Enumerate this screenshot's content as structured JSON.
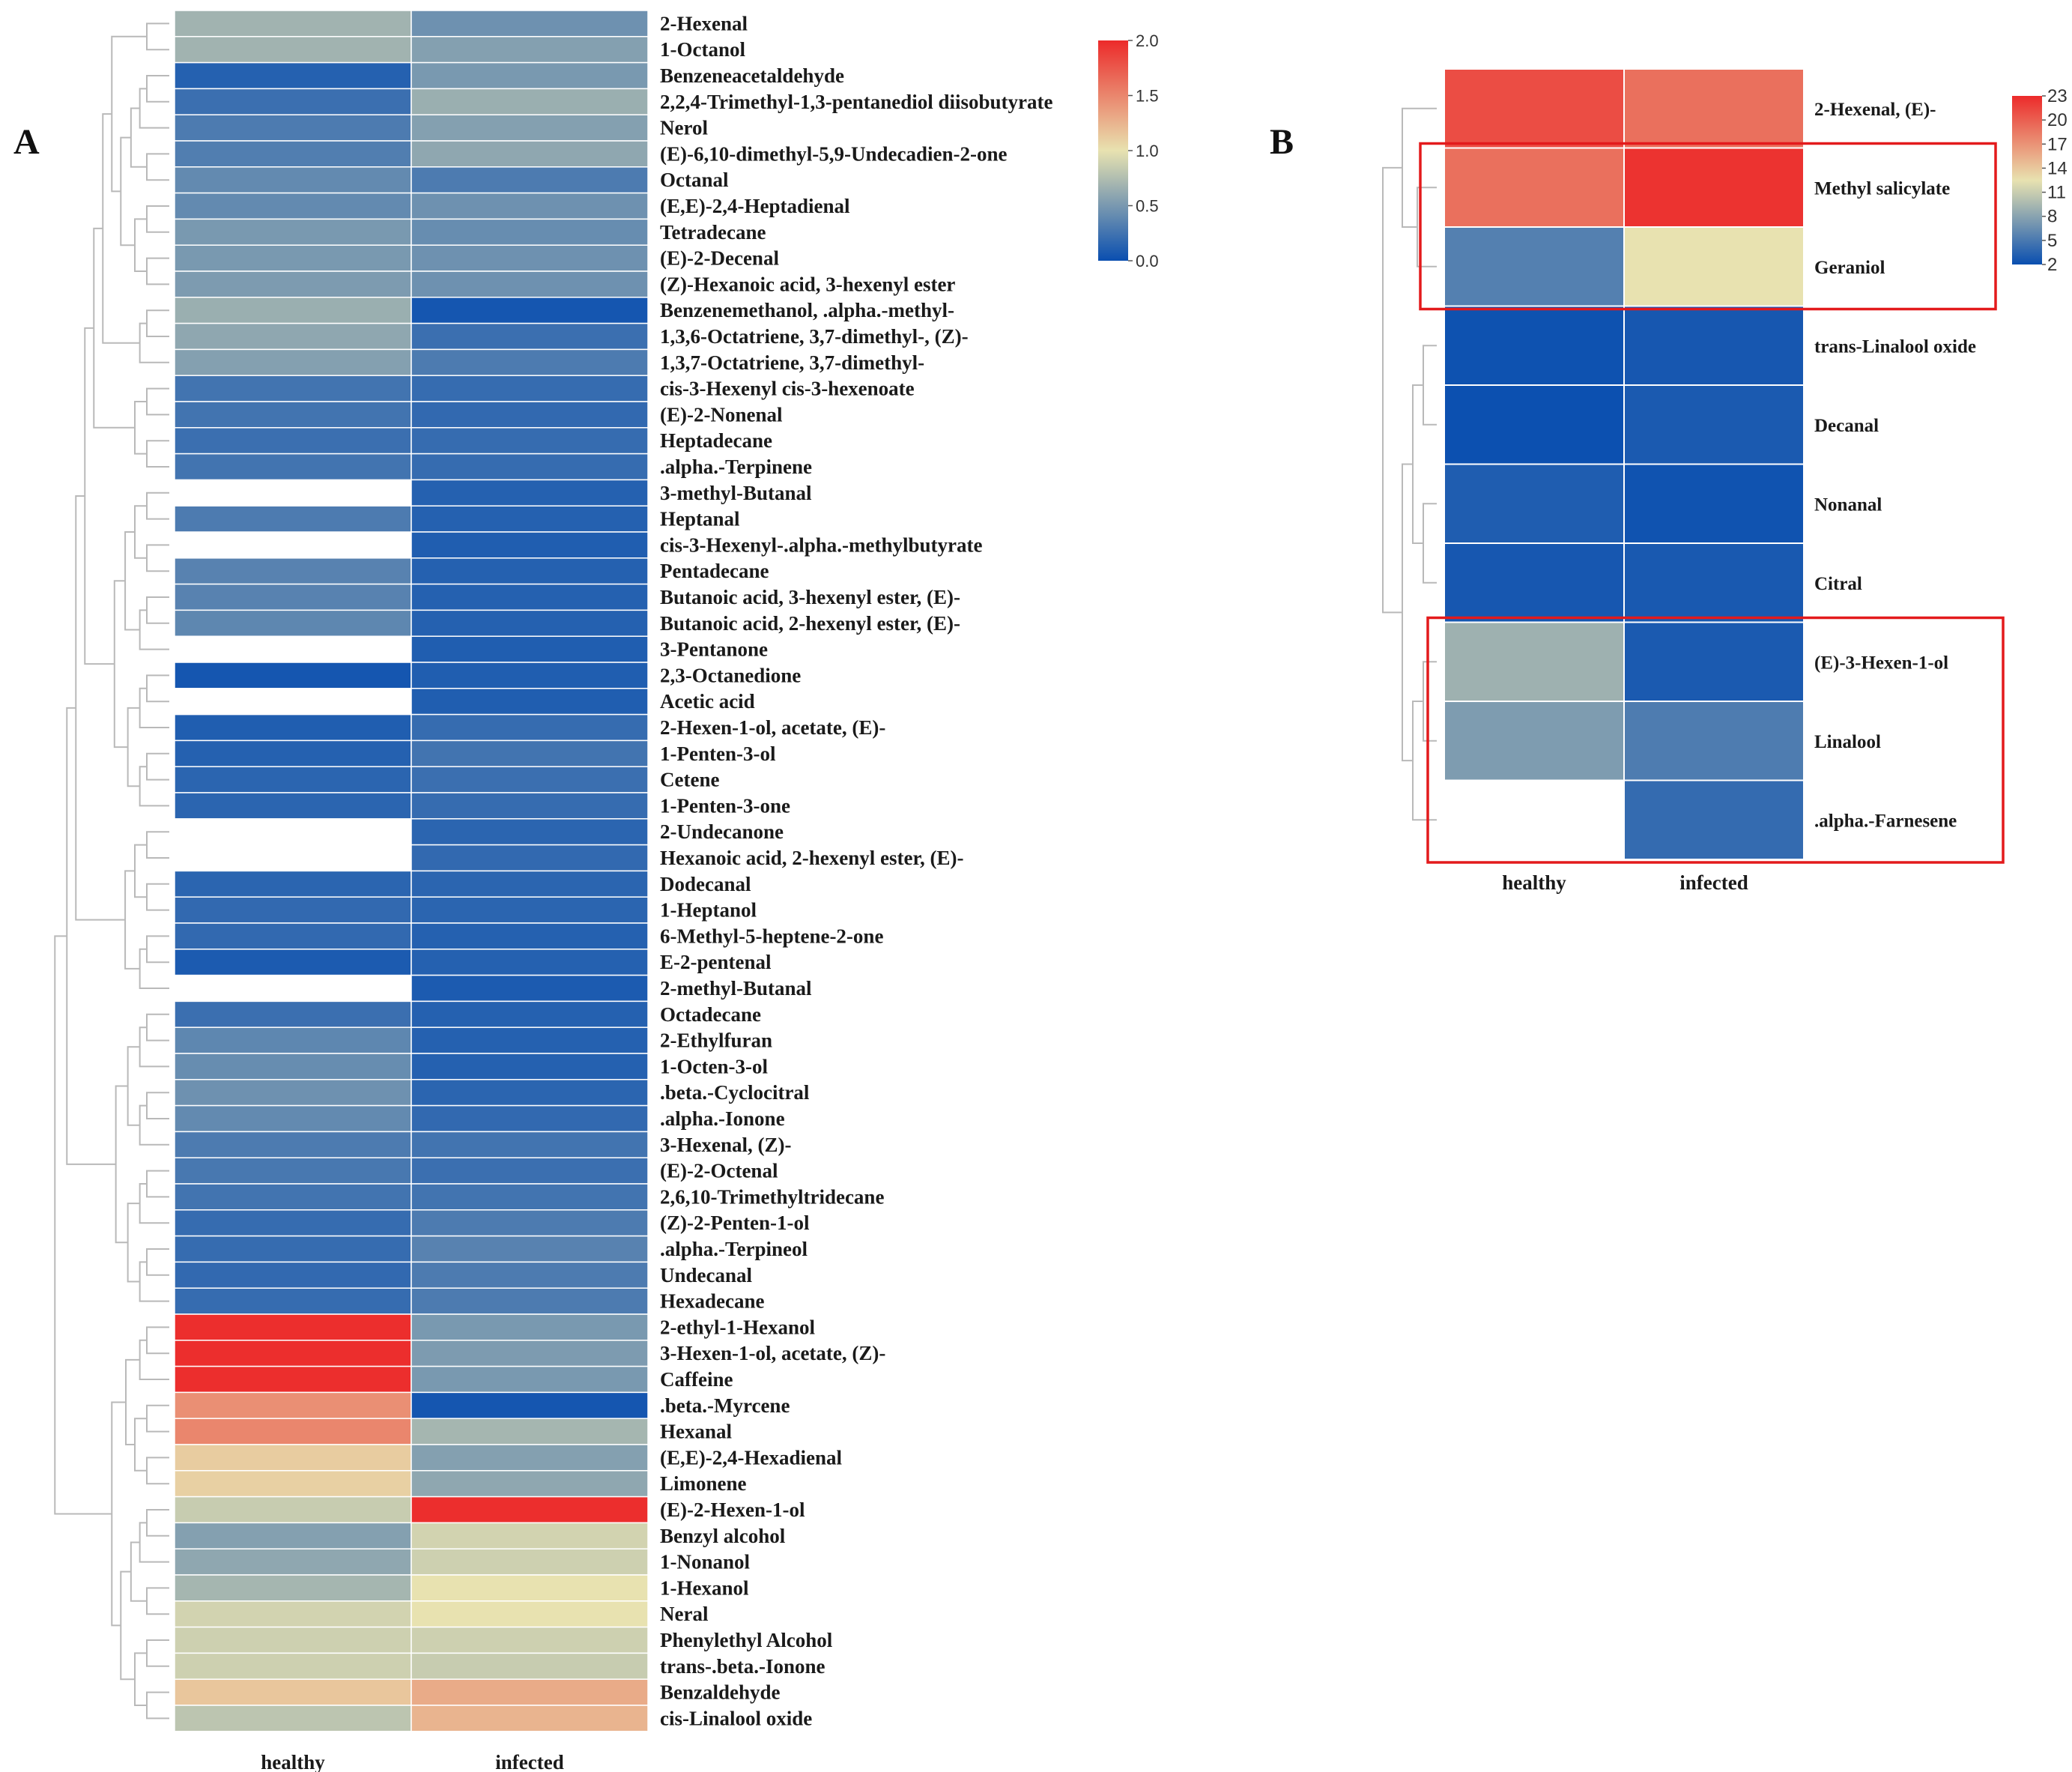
{
  "colors": {
    "low": "#0a4fb0",
    "mid": "#e8e2b0",
    "high": "#ec2a2a",
    "highlight_box": "#e31a1c",
    "dendrogram": "#b9b9b9"
  },
  "chart_data": [
    {
      "panel": "A",
      "type": "heatmap",
      "columns": [
        "healthy",
        "infected"
      ],
      "colorbar": {
        "min": 0.0,
        "max": 2.0,
        "ticks": [
          "2.0",
          "1.5",
          "1.0",
          "0.5",
          "0.0"
        ],
        "tick_values": [
          2.0,
          1.5,
          1.0,
          0.5,
          0.0
        ]
      },
      "rows": [
        {
          "name": "2-Hexenal",
          "values": [
            0.68,
            0.45
          ]
        },
        {
          "name": "1-Octanol",
          "values": [
            0.68,
            0.55
          ]
        },
        {
          "name": "Benzeneacetaldehyde",
          "values": [
            0.12,
            0.5
          ]
        },
        {
          "name": "2,2,4-Trimethyl-1,3-pentanediol diisobutyrate",
          "values": [
            0.22,
            0.65
          ]
        },
        {
          "name": "Nerol",
          "values": [
            0.3,
            0.55
          ]
        },
        {
          "name": "(E)-6,10-dimethyl-5,9-Undecadien-2-one",
          "values": [
            0.32,
            0.6
          ]
        },
        {
          "name": "Octanal",
          "values": [
            0.4,
            0.3
          ]
        },
        {
          "name": "(E,E)-2,4-Heptadienal",
          "values": [
            0.4,
            0.45
          ]
        },
        {
          "name": "Tetradecane",
          "values": [
            0.5,
            0.42
          ]
        },
        {
          "name": "(E)-2-Decenal",
          "values": [
            0.5,
            0.45
          ]
        },
        {
          "name": "(Z)-Hexanoic acid, 3-hexenyl ester",
          "values": [
            0.52,
            0.45
          ]
        },
        {
          "name": "Benzenemethanol, .alpha.-methyl-",
          "values": [
            0.65,
            0.05
          ]
        },
        {
          "name": "1,3,6-Octatriene, 3,7-dimethyl-, (Z)-",
          "values": [
            0.6,
            0.22
          ]
        },
        {
          "name": "1,3,7-Octatriene, 3,7-dimethyl-",
          "values": [
            0.55,
            0.3
          ]
        },
        {
          "name": "cis-3-Hexenyl cis-3-hexenoate",
          "values": [
            0.25,
            0.2
          ]
        },
        {
          "name": "(E)-2-Nonenal",
          "values": [
            0.25,
            0.18
          ]
        },
        {
          "name": "Heptadecane",
          "values": [
            0.22,
            0.2
          ]
        },
        {
          "name": ".alpha.-Terpinene",
          "values": [
            0.25,
            0.2
          ]
        },
        {
          "name": "3-methyl-Butanal",
          "values": [
            null,
            0.12
          ]
        },
        {
          "name": "Heptanal",
          "values": [
            0.3,
            0.12
          ]
        },
        {
          "name": "cis-3-Hexenyl-.alpha.-methylbutyrate",
          "values": [
            null,
            0.1
          ]
        },
        {
          "name": "Pentadecane",
          "values": [
            0.35,
            0.12
          ]
        },
        {
          "name": "Butanoic acid, 3-hexenyl ester, (E)-",
          "values": [
            0.35,
            0.12
          ]
        },
        {
          "name": "Butanoic acid, 2-hexenyl ester, (E)-",
          "values": [
            0.38,
            0.12
          ]
        },
        {
          "name": "3-Pentanone",
          "values": [
            null,
            0.1
          ]
        },
        {
          "name": "2,3-Octanedione",
          "values": [
            0.05,
            0.1
          ]
        },
        {
          "name": "Acetic acid",
          "values": [
            null,
            0.1
          ]
        },
        {
          "name": "2-Hexen-1-ol, acetate, (E)-",
          "values": [
            0.1,
            0.2
          ]
        },
        {
          "name": "1-Penten-3-ol",
          "values": [
            0.12,
            0.25
          ]
        },
        {
          "name": "Cetene",
          "values": [
            0.15,
            0.22
          ]
        },
        {
          "name": "1-Penten-3-one",
          "values": [
            0.15,
            0.2
          ]
        },
        {
          "name": "2-Undecanone",
          "values": [
            null,
            0.15
          ]
        },
        {
          "name": "Hexanoic acid, 2-hexenyl ester, (E)-",
          "values": [
            null,
            0.18
          ]
        },
        {
          "name": "Dodecanal",
          "values": [
            0.15,
            0.15
          ]
        },
        {
          "name": "1-Heptanol",
          "values": [
            0.18,
            0.15
          ]
        },
        {
          "name": "6-Methyl-5-heptene-2-one",
          "values": [
            0.18,
            0.12
          ]
        },
        {
          "name": "E-2-pentenal",
          "values": [
            0.08,
            0.12
          ]
        },
        {
          "name": "2-methyl-Butanal",
          "values": [
            null,
            0.08
          ]
        },
        {
          "name": "Octadecane",
          "values": [
            0.22,
            0.12
          ]
        },
        {
          "name": "2-Ethylfuran",
          "values": [
            0.38,
            0.12
          ]
        },
        {
          "name": "1-Octen-3-ol",
          "values": [
            0.42,
            0.12
          ]
        },
        {
          "name": ".beta.-Cyclocitral",
          "values": [
            0.45,
            0.15
          ]
        },
        {
          "name": ".alpha.-Ionone",
          "values": [
            0.4,
            0.18
          ]
        },
        {
          "name": "3-Hexenal, (Z)-",
          "values": [
            0.3,
            0.25
          ]
        },
        {
          "name": "(E)-2-Octenal",
          "values": [
            0.28,
            0.22
          ]
        },
        {
          "name": "2,6,10-Trimethyltridecane",
          "values": [
            0.25,
            0.25
          ]
        },
        {
          "name": "(Z)-2-Penten-1-ol",
          "values": [
            0.2,
            0.3
          ]
        },
        {
          "name": ".alpha.-Terpineol",
          "values": [
            0.2,
            0.35
          ]
        },
        {
          "name": "Undecanal",
          "values": [
            0.18,
            0.3
          ]
        },
        {
          "name": "Hexadecane",
          "values": [
            0.2,
            0.3
          ]
        },
        {
          "name": "2-ethyl-1-Hexanol",
          "values": [
            1.98,
            0.5
          ]
        },
        {
          "name": "3-Hexen-1-ol, acetate, (Z)-",
          "values": [
            1.98,
            0.52
          ]
        },
        {
          "name": "Caffeine",
          "values": [
            1.98,
            0.5
          ]
        },
        {
          "name": ".beta.-Myrcene",
          "values": [
            1.45,
            0.05
          ]
        },
        {
          "name": "Hexanal",
          "values": [
            1.5,
            0.7
          ]
        },
        {
          "name": "(E,E)-2,4-Hexadienal",
          "values": [
            1.12,
            0.55
          ]
        },
        {
          "name": "Limonene",
          "values": [
            1.1,
            0.6
          ]
        },
        {
          "name": "(E)-2-Hexen-1-ol",
          "values": [
            0.85,
            1.98
          ]
        },
        {
          "name": "Benzyl alcohol",
          "values": [
            0.55,
            0.9
          ]
        },
        {
          "name": "1-Nonanol",
          "values": [
            0.6,
            0.88
          ]
        },
        {
          "name": "1-Hexanol",
          "values": [
            0.7,
            1.0
          ]
        },
        {
          "name": "Neral",
          "values": [
            0.9,
            1.0
          ]
        },
        {
          "name": "Phenylethyl Alcohol",
          "values": [
            0.88,
            0.88
          ]
        },
        {
          "name": "trans-.beta.-Ionone",
          "values": [
            0.88,
            0.85
          ]
        },
        {
          "name": "Benzaldehyde",
          "values": [
            1.15,
            1.3
          ]
        },
        {
          "name": "cis-Linalool oxide",
          "values": [
            0.8,
            1.25
          ]
        }
      ]
    },
    {
      "panel": "B",
      "type": "heatmap",
      "columns": [
        "healthy",
        "infected"
      ],
      "colorbar": {
        "min": 2,
        "max": 23,
        "ticks": [
          "23",
          "20",
          "17",
          "14",
          "11",
          "8",
          "5",
          "2"
        ],
        "tick_values": [
          23,
          20,
          17,
          14,
          11,
          8,
          5,
          2
        ]
      },
      "rows": [
        {
          "name": "2-Hexenal, (E)-",
          "values": [
            21,
            19
          ]
        },
        {
          "name": "Methyl salicylate",
          "values": [
            19,
            22.5
          ]
        },
        {
          "name": "Geraniol",
          "values": [
            5.5,
            12.5
          ]
        },
        {
          "name": "trans-Linalool oxide",
          "values": [
            2.2,
            2.6
          ]
        },
        {
          "name": "Decanal",
          "values": [
            2.1,
            2.8
          ]
        },
        {
          "name": "Nonanal",
          "values": [
            3.0,
            2.3
          ]
        },
        {
          "name": "Citral",
          "values": [
            2.6,
            2.7
          ]
        },
        {
          "name": "(E)-3-Hexen-1-ol",
          "values": [
            9.0,
            2.8
          ]
        },
        {
          "name": "Linalool",
          "values": [
            7.5,
            5.2
          ]
        },
        {
          "name": ".alpha.-Farnesene",
          "values": [
            null,
            4.0
          ]
        }
      ],
      "highlight_groups": [
        [
          "Methyl salicylate",
          "Geraniol"
        ],
        [
          "(E)-3-Hexen-1-ol",
          "Linalool",
          ".alpha.-Farnesene"
        ]
      ]
    }
  ],
  "panels": {
    "a_label": "A",
    "b_label": "B"
  }
}
